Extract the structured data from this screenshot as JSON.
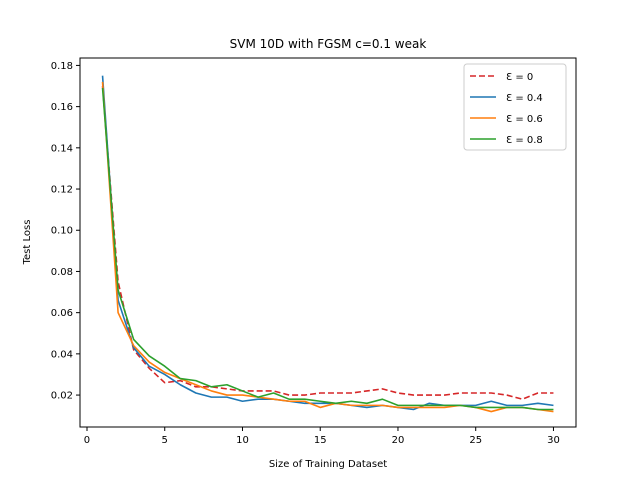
{
  "chart_data": {
    "type": "line",
    "title": "SVM 10D with FGSM c=0.1 weak",
    "xlabel": "Size of Training Dataset",
    "ylabel": "Test Loss",
    "xlim": [
      -0.45,
      31.45
    ],
    "ylim": [
      0.0045,
      0.1836
    ],
    "xticks": [
      0,
      5,
      10,
      15,
      20,
      25,
      30
    ],
    "yticks": [
      0.02,
      0.04,
      0.06,
      0.08,
      0.1,
      0.12,
      0.14,
      0.16,
      0.18
    ],
    "ytick_labels": [
      "0.02",
      "0.04",
      "0.06",
      "0.08",
      "0.10",
      "0.12",
      "0.14",
      "0.16",
      "0.18"
    ],
    "grid": false,
    "legend_position": "top-right",
    "x": [
      1,
      2,
      3,
      4,
      5,
      6,
      7,
      8,
      9,
      10,
      11,
      12,
      13,
      14,
      15,
      16,
      17,
      18,
      19,
      20,
      21,
      22,
      23,
      24,
      25,
      26,
      27,
      28,
      29,
      30
    ],
    "series": [
      {
        "name": "Ɛ = 0",
        "color": "#d62728",
        "dashed": true,
        "values": [
          0.17,
          0.075,
          0.042,
          0.033,
          0.026,
          0.027,
          0.024,
          0.024,
          0.023,
          0.022,
          0.022,
          0.022,
          0.02,
          0.02,
          0.021,
          0.021,
          0.021,
          0.022,
          0.023,
          0.021,
          0.02,
          0.02,
          0.02,
          0.021,
          0.021,
          0.021,
          0.02,
          0.018,
          0.021,
          0.021
        ]
      },
      {
        "name": "Ɛ = 0.4",
        "color": "#1f77b4",
        "dashed": false,
        "values": [
          0.175,
          0.066,
          0.043,
          0.034,
          0.03,
          0.025,
          0.021,
          0.019,
          0.019,
          0.017,
          0.018,
          0.018,
          0.017,
          0.016,
          0.016,
          0.016,
          0.015,
          0.014,
          0.015,
          0.014,
          0.013,
          0.016,
          0.015,
          0.015,
          0.015,
          0.017,
          0.015,
          0.015,
          0.016,
          0.015
        ]
      },
      {
        "name": "Ɛ = 0.6",
        "color": "#ff7f0e",
        "dashed": false,
        "values": [
          0.172,
          0.06,
          0.044,
          0.036,
          0.031,
          0.028,
          0.025,
          0.022,
          0.02,
          0.02,
          0.019,
          0.018,
          0.017,
          0.017,
          0.014,
          0.016,
          0.015,
          0.015,
          0.015,
          0.014,
          0.014,
          0.014,
          0.014,
          0.015,
          0.014,
          0.012,
          0.014,
          0.014,
          0.013,
          0.012
        ]
      },
      {
        "name": "Ɛ = 0.8",
        "color": "#2ca02c",
        "dashed": false,
        "values": [
          0.169,
          0.071,
          0.047,
          0.039,
          0.034,
          0.028,
          0.027,
          0.024,
          0.025,
          0.022,
          0.019,
          0.021,
          0.018,
          0.018,
          0.017,
          0.016,
          0.017,
          0.016,
          0.018,
          0.015,
          0.015,
          0.015,
          0.015,
          0.015,
          0.014,
          0.014,
          0.014,
          0.014,
          0.013,
          0.013
        ]
      }
    ]
  }
}
